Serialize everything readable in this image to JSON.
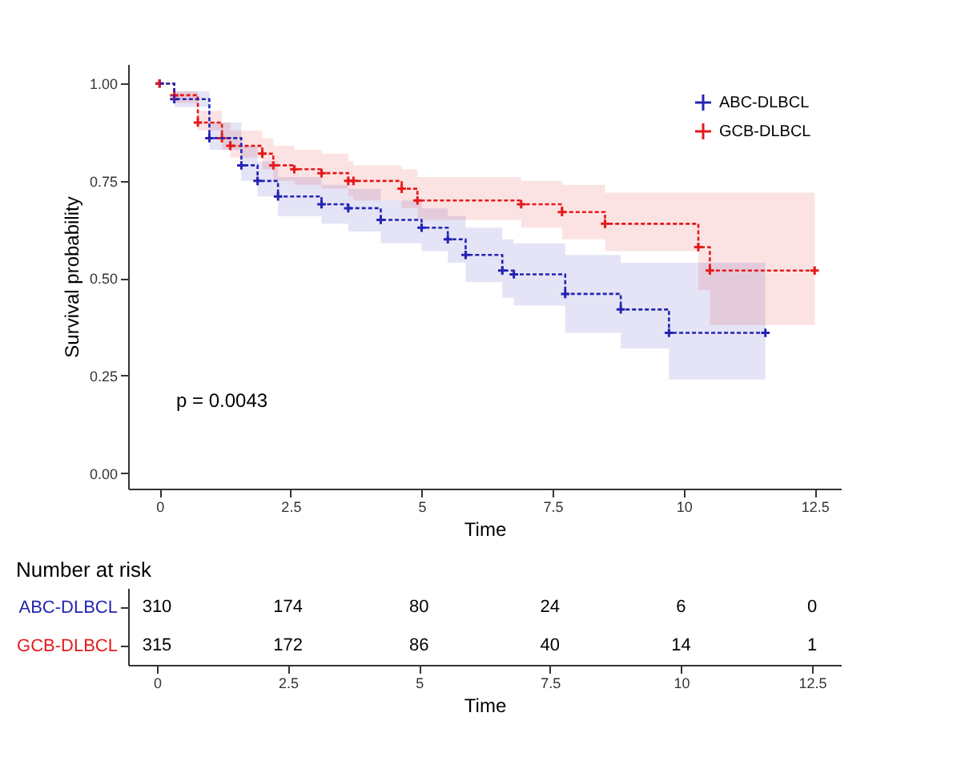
{
  "chart_data": [
    {
      "type": "step",
      "xlabel": "Time",
      "ylabel": "Survival probability",
      "annotations": [
        "p = 0.0043"
      ],
      "xlim": [
        -0.6,
        13.0
      ],
      "xticks": [
        0,
        2.5,
        5,
        7.5,
        10,
        12.5
      ],
      "ylim": [
        -0.04,
        1.05
      ],
      "yticks": [
        {
          "value": 0,
          "label": "0.00"
        },
        {
          "value": 0.25,
          "label": "0.25"
        },
        {
          "value": 0.5,
          "label": "0.50"
        },
        {
          "value": 0.75,
          "label": "0.75"
        },
        {
          "value": 1,
          "label": "1.00"
        }
      ],
      "legend": "top right",
      "marker": "cross",
      "line_style": "dashed",
      "series": [
        {
          "name": "ABC-DLBCL",
          "color": "#2424b4",
          "x": [
            0,
            0.28,
            0.95,
            1.56,
            1.87,
            2.26,
            3.09,
            3.6,
            4.22,
            5.0,
            5.5,
            5.84,
            6.54,
            6.76,
            7.74,
            8.8,
            9.72,
            11.56
          ],
          "values": [
            1,
            0.96,
            0.86,
            0.79,
            0.75,
            0.71,
            0.69,
            0.68,
            0.65,
            0.63,
            0.6,
            0.56,
            0.52,
            0.51,
            0.46,
            0.42,
            0.36,
            0.36
          ],
          "lower": [
            1,
            0.94,
            0.83,
            0.75,
            0.71,
            0.66,
            0.64,
            0.62,
            0.59,
            0.57,
            0.54,
            0.49,
            0.45,
            0.43,
            0.36,
            0.32,
            0.24,
            0.24
          ],
          "upper": [
            1,
            0.98,
            0.9,
            0.84,
            0.8,
            0.76,
            0.74,
            0.73,
            0.7,
            0.68,
            0.66,
            0.63,
            0.6,
            0.59,
            0.56,
            0.54,
            0.54,
            0.54
          ]
        },
        {
          "name": "GCB-DLBCL",
          "color": "#e41a1c",
          "x": [
            0,
            0.28,
            0.73,
            1.19,
            1.35,
            1.96,
            2.17,
            2.57,
            3.09,
            3.6,
            3.7,
            4.62,
            4.92,
            6.9,
            7.68,
            8.5,
            10.28,
            10.5,
            12.5
          ],
          "values": [
            1,
            0.97,
            0.9,
            0.86,
            0.84,
            0.82,
            0.79,
            0.78,
            0.77,
            0.75,
            0.75,
            0.73,
            0.7,
            0.69,
            0.67,
            0.64,
            0.58,
            0.52,
            0.52
          ],
          "lower": [
            1,
            0.95,
            0.88,
            0.83,
            0.81,
            0.78,
            0.75,
            0.74,
            0.73,
            0.71,
            0.7,
            0.68,
            0.65,
            0.63,
            0.6,
            0.57,
            0.47,
            0.38,
            0.38
          ],
          "upper": [
            1,
            0.98,
            0.93,
            0.9,
            0.88,
            0.86,
            0.84,
            0.83,
            0.82,
            0.8,
            0.79,
            0.78,
            0.76,
            0.75,
            0.74,
            0.72,
            0.72,
            0.72,
            0.72
          ]
        }
      ]
    },
    {
      "type": "heatmap",
      "title": "Number at risk",
      "xlabel": "Time",
      "data_labels": true,
      "categories": [
        "0",
        "2.5",
        "5",
        "7.5",
        "10",
        "12.5"
      ],
      "y_categories": [
        "ABC-DLBCL",
        "GCB-DLBCL"
      ],
      "cells": [
        [
          310,
          174,
          80,
          24,
          6,
          0
        ],
        [
          315,
          172,
          86,
          40,
          14,
          1
        ]
      ]
    }
  ]
}
